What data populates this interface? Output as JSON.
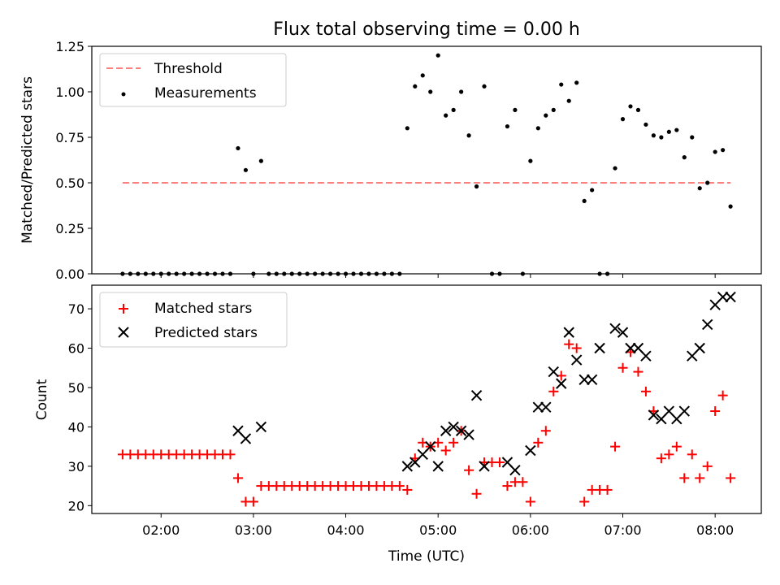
{
  "chart_data": [
    {
      "type": "scatter",
      "title": "Flux total observing time = 0.00 h",
      "ylabel": "Matched/Predicted stars",
      "xlabel": "",
      "ylim": [
        0,
        1.25
      ],
      "xlim_hours": [
        1.25,
        8.5
      ],
      "y_ticks": [
        "0.00",
        "0.25",
        "0.50",
        "0.75",
        "1.00",
        "1.25"
      ],
      "threshold": {
        "name": "Threshold",
        "value": 0.5,
        "color": "#ff7f7f",
        "style": "dashed",
        "x_start": "01:35",
        "x_end": "08:10"
      },
      "legend": {
        "placement": "top-left",
        "entries": [
          "Threshold",
          "Measurements"
        ]
      },
      "grid": false,
      "series": [
        {
          "name": "Measurements",
          "marker": "dot",
          "color": "#000000",
          "x": [
            "01:35",
            "01:40",
            "01:45",
            "01:50",
            "01:55",
            "02:00",
            "02:05",
            "02:10",
            "02:15",
            "02:20",
            "02:25",
            "02:30",
            "02:35",
            "02:40",
            "02:45",
            "02:50",
            "02:55",
            "03:00",
            "03:05",
            "03:10",
            "03:15",
            "03:20",
            "03:25",
            "03:30",
            "03:35",
            "03:40",
            "03:45",
            "03:50",
            "03:55",
            "04:00",
            "04:05",
            "04:10",
            "04:15",
            "04:20",
            "04:25",
            "04:30",
            "04:35",
            "04:40",
            "04:45",
            "04:50",
            "04:55",
            "05:00",
            "05:05",
            "05:10",
            "05:15",
            "05:20",
            "05:25",
            "05:30",
            "05:35",
            "05:40",
            "05:45",
            "05:50",
            "05:55",
            "06:00",
            "06:05",
            "06:10",
            "06:15",
            "06:20",
            "06:25",
            "06:30",
            "06:35",
            "06:40",
            "06:45",
            "06:50",
            "06:55",
            "07:00",
            "07:05",
            "07:10",
            "07:15",
            "07:20",
            "07:25",
            "07:30",
            "07:35",
            "07:40",
            "07:45",
            "07:50",
            "07:55",
            "08:00",
            "08:05",
            "08:10"
          ],
          "y": [
            0,
            0,
            0,
            0,
            0,
            0,
            0,
            0,
            0,
            0,
            0,
            0,
            0,
            0,
            0,
            0.69,
            0.57,
            0,
            0.62,
            0,
            0,
            0,
            0,
            0,
            0,
            0,
            0,
            0,
            0,
            0,
            0,
            0,
            0,
            0,
            0,
            0,
            0,
            0.8,
            1.03,
            1.09,
            1.0,
            1.2,
            0.87,
            0.9,
            1.0,
            0.76,
            0.48,
            1.03,
            0,
            0,
            0.81,
            0.9,
            0,
            0.62,
            0.8,
            0.87,
            0.9,
            1.04,
            0.95,
            1.05,
            0.4,
            0.46,
            0,
            0,
            0.58,
            0.85,
            0.92,
            0.9,
            0.82,
            0.76,
            0.75,
            0.78,
            0.79,
            0.64,
            0.75,
            0.47,
            0.5,
            0.67,
            0.68,
            0.37
          ]
        }
      ]
    },
    {
      "type": "scatter",
      "title": "",
      "xlabel": "Time (UTC)",
      "ylabel": "Count",
      "ylim": [
        18,
        76
      ],
      "xlim_hours": [
        1.25,
        8.5
      ],
      "x_ticks": [
        "02:00",
        "03:00",
        "04:00",
        "05:00",
        "06:00",
        "07:00",
        "08:00"
      ],
      "y_ticks": [
        "20",
        "30",
        "40",
        "50",
        "60",
        "70"
      ],
      "legend": {
        "placement": "top-left",
        "entries": [
          "Matched stars",
          "Predicted stars"
        ]
      },
      "grid": false,
      "series": [
        {
          "name": "Matched stars",
          "marker": "plus",
          "color": "#ff0000",
          "x": [
            "01:35",
            "01:40",
            "01:45",
            "01:50",
            "01:55",
            "02:00",
            "02:05",
            "02:10",
            "02:15",
            "02:20",
            "02:25",
            "02:30",
            "02:35",
            "02:40",
            "02:45",
            "02:50",
            "02:55",
            "03:00",
            "03:05",
            "03:10",
            "03:15",
            "03:20",
            "03:25",
            "03:30",
            "03:35",
            "03:40",
            "03:45",
            "03:50",
            "03:55",
            "04:00",
            "04:05",
            "04:10",
            "04:15",
            "04:20",
            "04:25",
            "04:30",
            "04:35",
            "04:40",
            "04:45",
            "04:50",
            "04:55",
            "05:00",
            "05:05",
            "05:10",
            "05:15",
            "05:20",
            "05:25",
            "05:30",
            "05:35",
            "05:40",
            "05:45",
            "05:50",
            "05:55",
            "06:00",
            "06:05",
            "06:10",
            "06:15",
            "06:20",
            "06:25",
            "06:30",
            "06:35",
            "06:40",
            "06:45",
            "06:50",
            "06:55",
            "07:00",
            "07:05",
            "07:10",
            "07:15",
            "07:20",
            "07:25",
            "07:30",
            "07:35",
            "07:40",
            "07:45",
            "07:50",
            "07:55",
            "08:00",
            "08:05",
            "08:10"
          ],
          "y": [
            33,
            33,
            33,
            33,
            33,
            33,
            33,
            33,
            33,
            33,
            33,
            33,
            33,
            33,
            33,
            27,
            21,
            21,
            25,
            25,
            25,
            25,
            25,
            25,
            25,
            25,
            25,
            25,
            25,
            25,
            25,
            25,
            25,
            25,
            25,
            25,
            25,
            24,
            32,
            36,
            35,
            36,
            34,
            36,
            39,
            29,
            23,
            31,
            31,
            31,
            25,
            26,
            26,
            21,
            36,
            39,
            49,
            53,
            61,
            60,
            21,
            24,
            24,
            24,
            35,
            55,
            59,
            54,
            49,
            44,
            32,
            33,
            35,
            27,
            33,
            27,
            30,
            44,
            48,
            27
          ]
        },
        {
          "name": "Predicted stars",
          "marker": "x",
          "color": "#000000",
          "x": [
            "02:50",
            "02:55",
            "03:05",
            "04:40",
            "04:45",
            "04:50",
            "04:55",
            "05:00",
            "05:05",
            "05:10",
            "05:15",
            "05:20",
            "05:25",
            "05:30",
            "05:45",
            "05:50",
            "06:00",
            "06:05",
            "06:10",
            "06:15",
            "06:20",
            "06:25",
            "06:30",
            "06:35",
            "06:40",
            "06:45",
            "06:55",
            "07:00",
            "07:05",
            "07:10",
            "07:15",
            "07:20",
            "07:25",
            "07:30",
            "07:35",
            "07:40",
            "07:45",
            "07:50",
            "07:55",
            "08:00",
            "08:05",
            "08:10"
          ],
          "y": [
            39,
            37,
            40,
            30,
            31,
            33,
            35,
            30,
            39,
            40,
            39,
            38,
            48,
            30,
            31,
            29,
            34,
            45,
            45,
            54,
            51,
            64,
            57,
            52,
            52,
            60,
            65,
            64,
            60,
            60,
            58,
            43,
            42,
            44,
            42,
            44,
            58,
            60,
            66,
            71,
            73,
            73
          ]
        }
      ]
    }
  ]
}
